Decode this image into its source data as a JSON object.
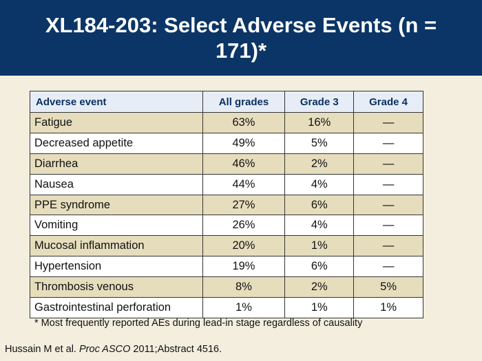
{
  "slide": {
    "title": "XL184-203: Select Adverse Events (n = 171)*",
    "footnote": "* Most frequently reported AEs during lead-in stage regardless of causality",
    "citation": {
      "authors": "Hussain M et al. ",
      "journal": "Proc ASCO",
      "rest": " 2011;Abstract 4516."
    }
  },
  "table": {
    "headers": [
      "Adverse event",
      "All grades",
      "Grade 3",
      "Grade 4"
    ],
    "rows": [
      {
        "event": "Fatigue",
        "all": "63%",
        "g3": "16%",
        "g4": "—"
      },
      {
        "event": "Decreased appetite",
        "all": "49%",
        "g3": "5%",
        "g4": "—"
      },
      {
        "event": "Diarrhea",
        "all": "46%",
        "g3": "2%",
        "g4": "—"
      },
      {
        "event": "Nausea",
        "all": "44%",
        "g3": "4%",
        "g4": "—"
      },
      {
        "event": "PPE syndrome",
        "all": "27%",
        "g3": "6%",
        "g4": "—"
      },
      {
        "event": "Vomiting",
        "all": "26%",
        "g3": "4%",
        "g4": "—"
      },
      {
        "event": "Mucosal inflammation",
        "all": "20%",
        "g3": "1%",
        "g4": "—"
      },
      {
        "event": "Hypertension",
        "all": "19%",
        "g3": "6%",
        "g4": "—"
      },
      {
        "event": "Thrombosis venous",
        "all": "8%",
        "g3": "2%",
        "g4": "5%"
      },
      {
        "event": "Gastrointestinal perforation",
        "all": "1%",
        "g3": "1%",
        "g4": "1%"
      }
    ]
  },
  "colors": {
    "title_bar": "#0b3566",
    "background": "#f3eedd",
    "header_row": "#e6edf6",
    "odd_row": "#e6ddbd",
    "even_row": "#ffffff"
  }
}
